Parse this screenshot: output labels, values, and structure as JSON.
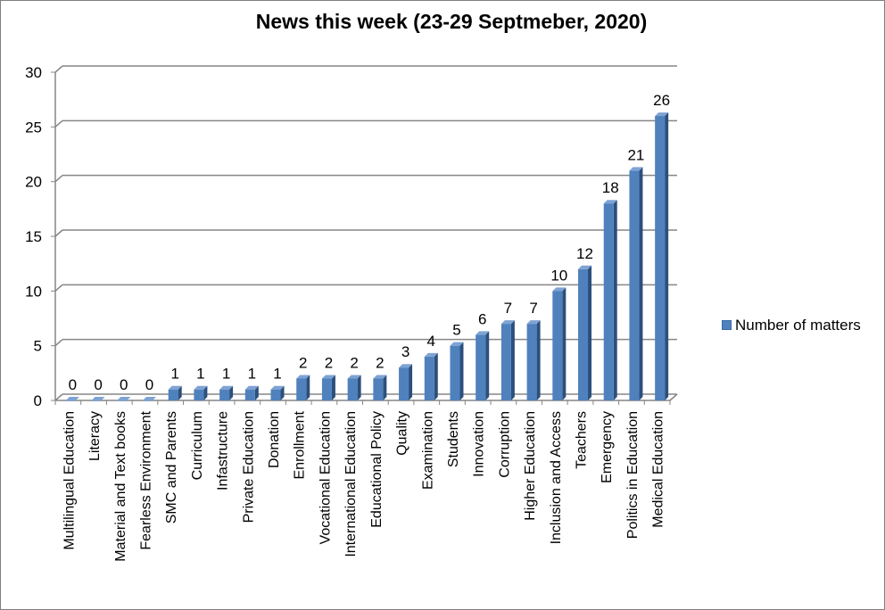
{
  "chart_data": {
    "type": "bar",
    "title": "News this week (23-29 Septmeber, 2020)",
    "xlabel": "",
    "ylabel": "",
    "ylim": [
      0,
      30
    ],
    "yticks": [
      0,
      5,
      10,
      15,
      20,
      25,
      30
    ],
    "grid": true,
    "legend_position": "right",
    "color": "#4f81bd",
    "categories": [
      "Multilingual Education",
      "Literacy",
      "Material and Text books",
      "Fearless Environment",
      "SMC and Parents",
      "Curriculum",
      "Infastructure",
      "Private Education",
      "Donation",
      "Enrollment",
      "Vocational Education",
      "International Education",
      "Educational Policy",
      "Quality",
      "Examination",
      "Students",
      "Innovation",
      "Corruption",
      "Higher Education",
      "Inclusion and Access",
      "Teachers",
      "Emergency",
      "Politics in Education",
      "Medical Education"
    ],
    "series": [
      {
        "name": "Number of matters",
        "values": [
          0,
          0,
          0,
          0,
          1,
          1,
          1,
          1,
          1,
          2,
          2,
          2,
          2,
          3,
          4,
          5,
          6,
          7,
          7,
          10,
          12,
          18,
          21,
          26
        ]
      }
    ]
  }
}
